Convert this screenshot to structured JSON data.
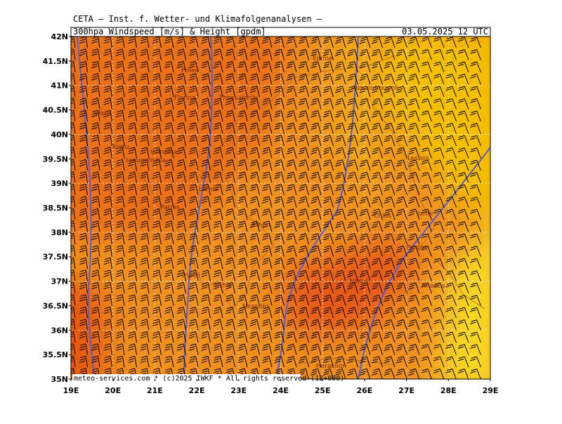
{
  "header": {
    "institute": "CETA — Inst. f. Wetter- und Klimafolgenanalysen —",
    "title": "300hpa Windspeed [m/s] & Height [gpdm]",
    "datetime": "03.05.2025 12 UTC"
  },
  "map": {
    "lat_labels": [
      "42N",
      "41.5N",
      "41N",
      "40.5N",
      "40N",
      "39.5N",
      "39N",
      "38.5N",
      "38N",
      "37.5N",
      "37N",
      "36.5N",
      "36N",
      "35.5N",
      "35N"
    ],
    "lon_labels": [
      "19E",
      "20E",
      "21E",
      "22E",
      "23E",
      "24E",
      "25E",
      "26E",
      "27E",
      "28E",
      "29E"
    ],
    "cities": [
      "Prilep",
      "Florina",
      "Thessaloniki",
      "Vlora",
      "Korfu",
      "Ioannina",
      "Igoumenitsa",
      "Lamia",
      "Patras",
      "Athen",
      "Tripoli",
      "Githio",
      "Neapolis",
      "Chios",
      "Izmir",
      "Naxos",
      "Heraklion",
      "Alexandroupoli",
      "Lesbos",
      "Edirne",
      "Pyrgos",
      "Rhodos"
    ]
  },
  "footer": {
    "copyright": "meteo-services.com * (c)2025 IWKF * All rights reserved (12+000)"
  }
}
